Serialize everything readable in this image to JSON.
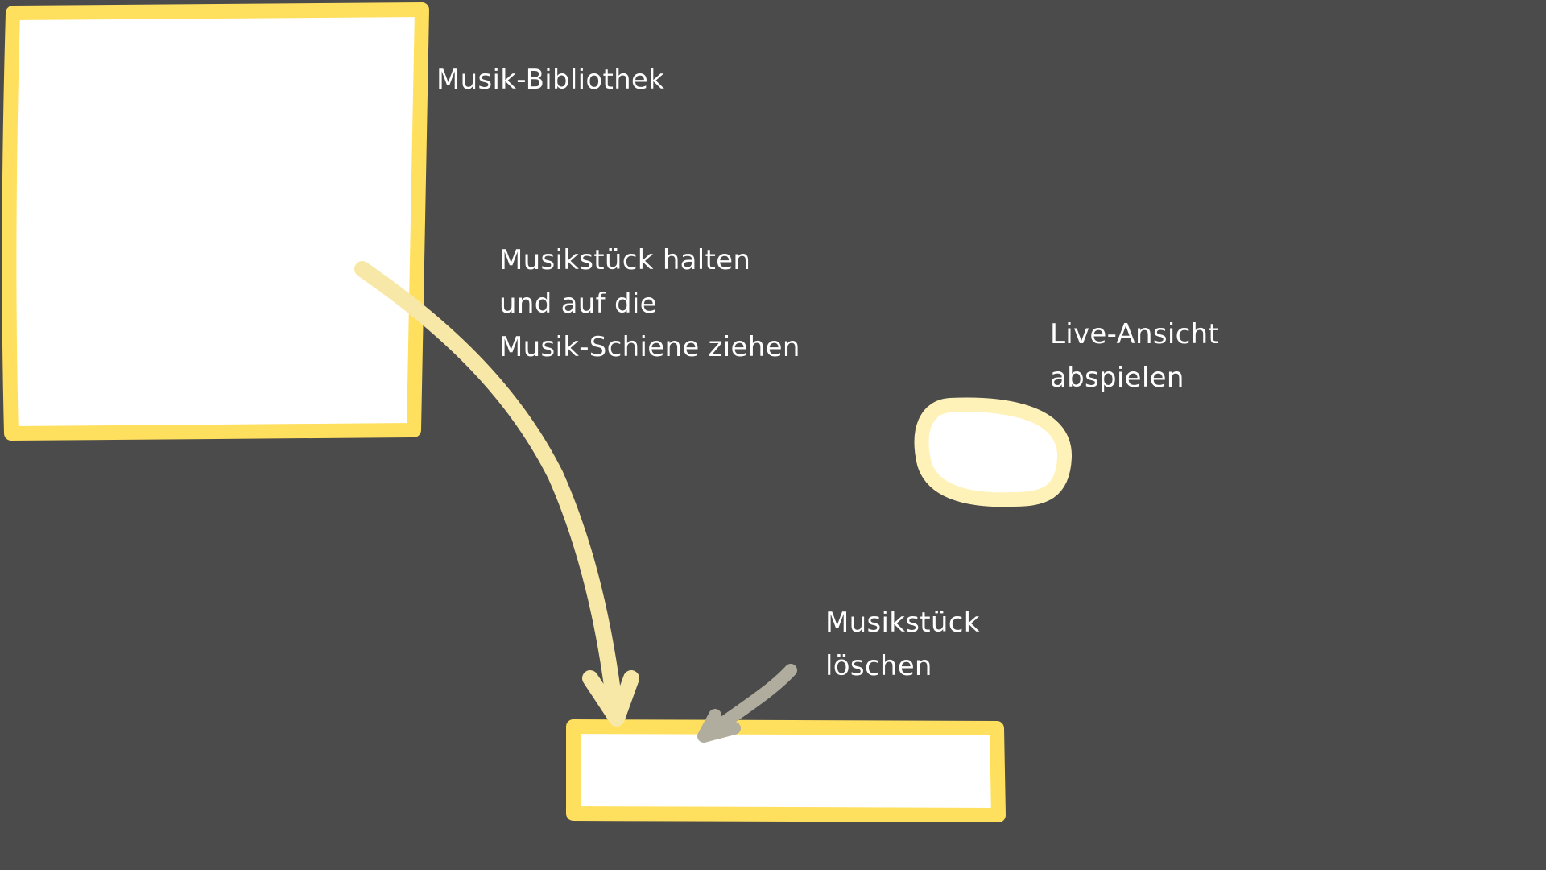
{
  "colors": {
    "background": "#4b4b4b",
    "panel_fill": "#ffffff",
    "panel_border": "#ffdf5e",
    "play_border": "#fff2b8",
    "drag_arrow": "#f8e8a8",
    "delete_arrow": "#b1ad9e",
    "text": "#ffffff"
  },
  "labels": {
    "library": "Musik-Bibliothek",
    "drag": {
      "line1": "Musikstück halten",
      "line2": "und auf die",
      "line3": "Musik-Schiene ziehen"
    },
    "live": {
      "line1": "Live-Ansicht",
      "line2": "abspielen"
    },
    "delete": {
      "line1": "Musikstück",
      "line2": "löschen"
    }
  }
}
